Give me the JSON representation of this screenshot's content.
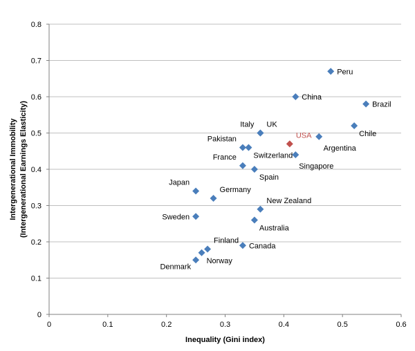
{
  "chart_data": {
    "type": "scatter",
    "title": "",
    "xlabel": "Inequality (Gini index)",
    "ylabel_line1": "Intergenerational Immobility",
    "ylabel_line2": "(Intergenerational Earnings Elasticity)",
    "xlim": [
      0,
      0.6
    ],
    "ylim": [
      0,
      0.8
    ],
    "x_ticks": [
      "0",
      "0.1",
      "0.2",
      "0.3",
      "0.4",
      "0.5",
      "0.6"
    ],
    "y_ticks": [
      "0",
      "0.1",
      "0.2",
      "0.3",
      "0.4",
      "0.5",
      "0.6",
      "0.7",
      "0.8"
    ],
    "grid": "horizontal",
    "marker_color": "#4a7ebb",
    "highlight_color": "#c0504d",
    "points": [
      {
        "label": "Peru",
        "x": 0.48,
        "y": 0.67,
        "label_side": "right"
      },
      {
        "label": "China",
        "x": 0.42,
        "y": 0.6,
        "label_side": "right"
      },
      {
        "label": "Brazil",
        "x": 0.54,
        "y": 0.58,
        "label_side": "right"
      },
      {
        "label": "Chile",
        "x": 0.52,
        "y": 0.52,
        "label_side": "below-right"
      },
      {
        "label": "Argentina",
        "x": 0.46,
        "y": 0.49,
        "label_side": "below"
      },
      {
        "label": "USA",
        "x": 0.41,
        "y": 0.47,
        "label_side": "above-right",
        "highlight": true
      },
      {
        "label": "UK",
        "x": 0.36,
        "y": 0.5,
        "label_side": "above-right"
      },
      {
        "label": "Italy",
        "x": 0.36,
        "y": 0.5,
        "label_side": "above-left"
      },
      {
        "label": "Pakistan",
        "x": 0.33,
        "y": 0.46,
        "label_side": "above-left"
      },
      {
        "label": "Switzerland",
        "x": 0.34,
        "y": 0.46,
        "label_side": "below-right"
      },
      {
        "label": "Singapore",
        "x": 0.42,
        "y": 0.44,
        "label_side": "below"
      },
      {
        "label": "France",
        "x": 0.33,
        "y": 0.41,
        "label_side": "above-left"
      },
      {
        "label": "Spain",
        "x": 0.35,
        "y": 0.4,
        "label_side": "below-right"
      },
      {
        "label": "Japan",
        "x": 0.25,
        "y": 0.34,
        "label_side": "above-left"
      },
      {
        "label": "Germany",
        "x": 0.28,
        "y": 0.32,
        "label_side": "above-right"
      },
      {
        "label": "New Zealand",
        "x": 0.36,
        "y": 0.29,
        "label_side": "above-right"
      },
      {
        "label": "Sweden",
        "x": 0.25,
        "y": 0.27,
        "label_side": "left"
      },
      {
        "label": "Australia",
        "x": 0.35,
        "y": 0.26,
        "label_side": "below-right"
      },
      {
        "label": "Finland",
        "x": 0.27,
        "y": 0.18,
        "label_side": "above-right"
      },
      {
        "label": "Canada",
        "x": 0.33,
        "y": 0.19,
        "label_side": "right"
      },
      {
        "label": "Norway",
        "x": 0.26,
        "y": 0.17,
        "label_side": "below-right"
      },
      {
        "label": "Denmark",
        "x": 0.25,
        "y": 0.15,
        "label_side": "below-left"
      }
    ]
  }
}
